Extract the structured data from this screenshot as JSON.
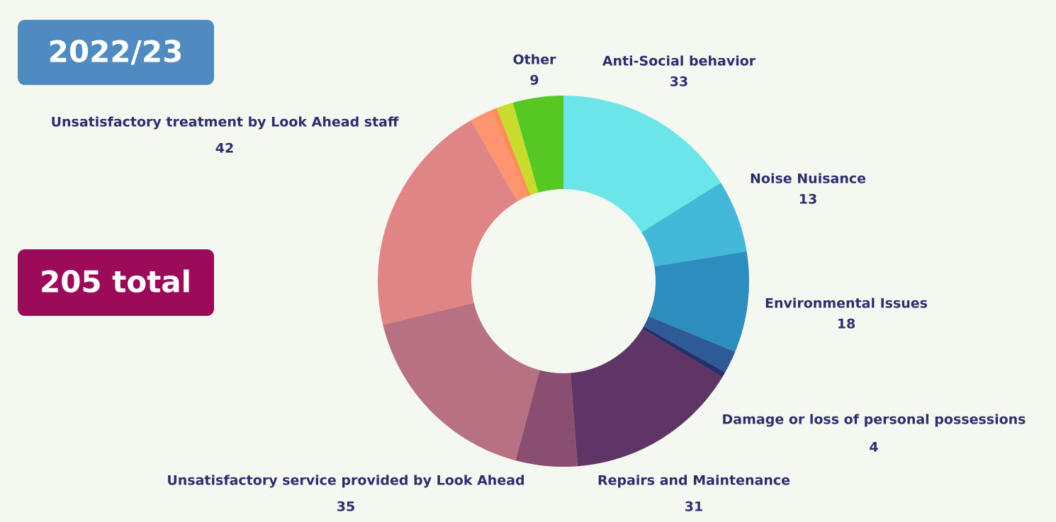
{
  "chart_data": {
    "type": "donut",
    "badges": [
      "2022/23",
      "205 total"
    ],
    "categories": [
      "Anti-Social behavior",
      "Noise Nuisance",
      "Environmental Issues",
      "Damage or loss of personal possessions",
      null,
      "Repairs and Maintenance",
      null,
      "Unsatisfactory service provided by Look Ahead",
      "Unsatisfactory treatment by Look Ahead staff",
      null,
      null,
      null,
      "Other"
    ],
    "values": [
      33,
      13,
      18,
      4,
      1,
      31,
      11,
      35,
      42,
      4,
      1,
      3,
      9
    ],
    "colors": [
      "#6ce5e8",
      "#43b8d8",
      "#2d8dbd",
      "#2e5a96",
      "#27306b",
      "#5e3566",
      "#8a4f70",
      "#b87182",
      "#e08585",
      "#ff9570",
      "#ff8c5a",
      "#c9dc2e",
      "#57c823"
    ]
  }
}
